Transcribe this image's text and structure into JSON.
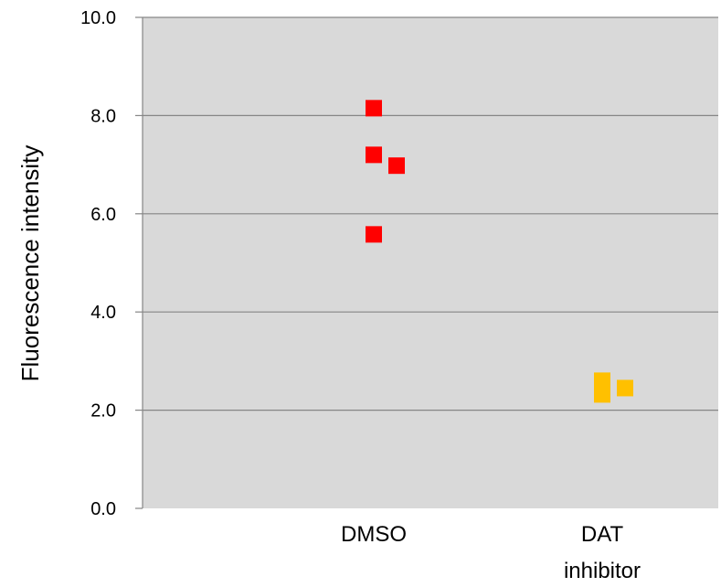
{
  "chart_data": {
    "type": "scatter",
    "title": "",
    "xlabel": "",
    "ylabel": "Fluorescence intensity",
    "ylim": [
      0,
      10
    ],
    "yticks": [
      "0.0",
      "2.0",
      "4.0",
      "6.0",
      "8.0",
      "10.0"
    ],
    "categories": [
      {
        "label_lines": [
          "DMSO"
        ]
      },
      {
        "label_lines": [
          "DAT",
          "inhibitor"
        ]
      }
    ],
    "grid": true,
    "plot_background": "#d9d9d9",
    "series": [
      {
        "category_index": 0,
        "color": "#ff0000",
        "marker": "square",
        "points": [
          {
            "offset": 0,
            "y": 8.15
          },
          {
            "offset": 0,
            "y": 7.2
          },
          {
            "offset": 1,
            "y": 6.98
          },
          {
            "offset": 0,
            "y": 5.58
          }
        ]
      },
      {
        "category_index": 1,
        "color": "#ffc000",
        "marker": "square",
        "points": [
          {
            "offset": 0,
            "y": 2.6
          },
          {
            "offset": 0,
            "y": 2.32
          },
          {
            "offset": 1,
            "y": 2.45
          }
        ]
      }
    ]
  }
}
